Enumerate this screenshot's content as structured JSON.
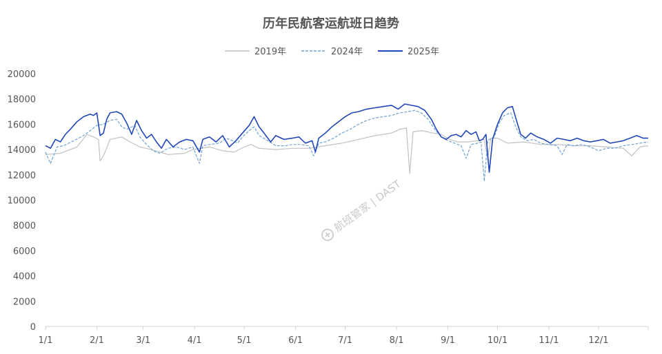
{
  "chart_data": {
    "type": "line",
    "title": "历年民航客运航班日趋势",
    "xlabel": "",
    "ylabel": "",
    "ylim": [
      0,
      20000
    ],
    "yticks": [
      0,
      2000,
      4000,
      6000,
      8000,
      10000,
      12000,
      14000,
      16000,
      18000,
      20000
    ],
    "x_tick_labels": [
      "1/1",
      "2/1",
      "3/1",
      "4/1",
      "5/1",
      "6/1",
      "7/1",
      "8/1",
      "9/1",
      "10/1",
      "11/1",
      "12/1"
    ],
    "x_domain_days": [
      1,
      365
    ],
    "grid": false,
    "legend_position": "top-center",
    "watermark": "航班管家 | DAST",
    "series": [
      {
        "name": "2019年",
        "color": "#c0c0c0",
        "dash": "solid",
        "points": [
          [
            1,
            13600
          ],
          [
            10,
            13700
          ],
          [
            20,
            14200
          ],
          [
            26,
            15200
          ],
          [
            30,
            15000
          ],
          [
            33,
            14800
          ],
          [
            34,
            13100
          ],
          [
            36,
            13500
          ],
          [
            40,
            14800
          ],
          [
            47,
            15000
          ],
          [
            52,
            14600
          ],
          [
            58,
            14200
          ],
          [
            65,
            14000
          ],
          [
            75,
            13600
          ],
          [
            85,
            13700
          ],
          [
            90,
            14000
          ],
          [
            100,
            14200
          ],
          [
            108,
            13900
          ],
          [
            115,
            13800
          ],
          [
            121,
            14200
          ],
          [
            125,
            14400
          ],
          [
            130,
            14100
          ],
          [
            140,
            14000
          ],
          [
            150,
            14100
          ],
          [
            160,
            14100
          ],
          [
            170,
            14300
          ],
          [
            180,
            14500
          ],
          [
            190,
            14800
          ],
          [
            200,
            15100
          ],
          [
            210,
            15300
          ],
          [
            215,
            15600
          ],
          [
            219,
            15700
          ],
          [
            221,
            12100
          ],
          [
            223,
            15400
          ],
          [
            228,
            15500
          ],
          [
            235,
            15300
          ],
          [
            240,
            15200
          ],
          [
            245,
            14800
          ],
          [
            250,
            14600
          ],
          [
            256,
            14600
          ],
          [
            262,
            14700
          ],
          [
            266,
            14800
          ],
          [
            268,
            13300
          ],
          [
            270,
            14900
          ],
          [
            274,
            14900
          ],
          [
            280,
            14500
          ],
          [
            290,
            14600
          ],
          [
            300,
            14400
          ],
          [
            310,
            14400
          ],
          [
            320,
            14300
          ],
          [
            330,
            14300
          ],
          [
            340,
            14200
          ],
          [
            350,
            14100
          ],
          [
            355,
            13500
          ],
          [
            360,
            14200
          ],
          [
            365,
            14300
          ]
        ]
      },
      {
        "name": "2024年",
        "color": "#6fa3d4",
        "dash": "dashed",
        "points": [
          [
            1,
            13800
          ],
          [
            4,
            12900
          ],
          [
            8,
            14200
          ],
          [
            12,
            14300
          ],
          [
            18,
            14700
          ],
          [
            24,
            15100
          ],
          [
            28,
            15500
          ],
          [
            32,
            15900
          ],
          [
            36,
            16000
          ],
          [
            40,
            16300
          ],
          [
            44,
            16400
          ],
          [
            47,
            15800
          ],
          [
            50,
            15600
          ],
          [
            55,
            15900
          ],
          [
            58,
            15000
          ],
          [
            62,
            14400
          ],
          [
            66,
            13900
          ],
          [
            70,
            13700
          ],
          [
            75,
            14100
          ],
          [
            80,
            14200
          ],
          [
            85,
            14000
          ],
          [
            90,
            14200
          ],
          [
            94,
            12900
          ],
          [
            96,
            14300
          ],
          [
            100,
            14400
          ],
          [
            106,
            14500
          ],
          [
            110,
            14900
          ],
          [
            114,
            14700
          ],
          [
            117,
            14500
          ],
          [
            120,
            15000
          ],
          [
            124,
            15500
          ],
          [
            127,
            15800
          ],
          [
            130,
            15100
          ],
          [
            134,
            14800
          ],
          [
            140,
            14300
          ],
          [
            146,
            14300
          ],
          [
            150,
            14400
          ],
          [
            155,
            14400
          ],
          [
            160,
            14300
          ],
          [
            163,
            13500
          ],
          [
            166,
            14500
          ],
          [
            170,
            14600
          ],
          [
            175,
            14900
          ],
          [
            180,
            15300
          ],
          [
            185,
            15600
          ],
          [
            190,
            16000
          ],
          [
            195,
            16300
          ],
          [
            200,
            16500
          ],
          [
            205,
            16600
          ],
          [
            210,
            16700
          ],
          [
            215,
            16900
          ],
          [
            220,
            17000
          ],
          [
            224,
            17100
          ],
          [
            228,
            16900
          ],
          [
            232,
            16400
          ],
          [
            236,
            15600
          ],
          [
            240,
            15000
          ],
          [
            244,
            14700
          ],
          [
            248,
            14500
          ],
          [
            252,
            14300
          ],
          [
            255,
            13300
          ],
          [
            258,
            14400
          ],
          [
            262,
            14500
          ],
          [
            264,
            14600
          ],
          [
            266,
            11500
          ],
          [
            268,
            14700
          ],
          [
            272,
            15000
          ],
          [
            275,
            16100
          ],
          [
            278,
            16700
          ],
          [
            282,
            16900
          ],
          [
            285,
            15800
          ],
          [
            288,
            15000
          ],
          [
            292,
            14700
          ],
          [
            296,
            14800
          ],
          [
            300,
            14500
          ],
          [
            305,
            14400
          ],
          [
            310,
            14300
          ],
          [
            313,
            13600
          ],
          [
            316,
            14400
          ],
          [
            320,
            14300
          ],
          [
            325,
            14400
          ],
          [
            330,
            14200
          ],
          [
            335,
            13900
          ],
          [
            340,
            14100
          ],
          [
            345,
            14100
          ],
          [
            350,
            14300
          ],
          [
            355,
            14400
          ],
          [
            360,
            14500
          ],
          [
            365,
            14600
          ]
        ]
      },
      {
        "name": "2025年",
        "color": "#1f45b8",
        "dash": "solid",
        "points": [
          [
            1,
            14300
          ],
          [
            4,
            14100
          ],
          [
            7,
            14800
          ],
          [
            10,
            14600
          ],
          [
            13,
            15200
          ],
          [
            16,
            15600
          ],
          [
            20,
            16200
          ],
          [
            24,
            16600
          ],
          [
            28,
            16800
          ],
          [
            30,
            16700
          ],
          [
            32,
            16900
          ],
          [
            34,
            15100
          ],
          [
            36,
            15300
          ],
          [
            38,
            16400
          ],
          [
            40,
            16900
          ],
          [
            44,
            17000
          ],
          [
            47,
            16800
          ],
          [
            50,
            16100
          ],
          [
            53,
            15200
          ],
          [
            56,
            16300
          ],
          [
            59,
            15500
          ],
          [
            62,
            14900
          ],
          [
            65,
            15200
          ],
          [
            68,
            14600
          ],
          [
            71,
            14100
          ],
          [
            74,
            14800
          ],
          [
            78,
            14200
          ],
          [
            82,
            14600
          ],
          [
            86,
            14800
          ],
          [
            90,
            14700
          ],
          [
            94,
            13800
          ],
          [
            96,
            14800
          ],
          [
            100,
            15000
          ],
          [
            104,
            14600
          ],
          [
            108,
            15100
          ],
          [
            112,
            14200
          ],
          [
            116,
            14700
          ],
          [
            120,
            15300
          ],
          [
            124,
            15900
          ],
          [
            127,
            16600
          ],
          [
            130,
            15800
          ],
          [
            133,
            15300
          ],
          [
            137,
            14600
          ],
          [
            140,
            15100
          ],
          [
            145,
            14800
          ],
          [
            150,
            14900
          ],
          [
            154,
            15000
          ],
          [
            158,
            14500
          ],
          [
            162,
            14700
          ],
          [
            164,
            13800
          ],
          [
            166,
            14900
          ],
          [
            170,
            15300
          ],
          [
            174,
            15800
          ],
          [
            178,
            16200
          ],
          [
            182,
            16600
          ],
          [
            186,
            16900
          ],
          [
            190,
            17000
          ],
          [
            195,
            17200
          ],
          [
            200,
            17300
          ],
          [
            205,
            17400
          ],
          [
            210,
            17500
          ],
          [
            214,
            17200
          ],
          [
            218,
            17600
          ],
          [
            222,
            17500
          ],
          [
            226,
            17400
          ],
          [
            230,
            17100
          ],
          [
            234,
            16400
          ],
          [
            237,
            15600
          ],
          [
            240,
            15000
          ],
          [
            243,
            14800
          ],
          [
            246,
            15100
          ],
          [
            249,
            15200
          ],
          [
            252,
            15000
          ],
          [
            255,
            15500
          ],
          [
            258,
            15200
          ],
          [
            261,
            15400
          ],
          [
            263,
            14700
          ],
          [
            265,
            14800
          ],
          [
            267,
            15200
          ],
          [
            269,
            12200
          ],
          [
            271,
            14800
          ],
          [
            274,
            16000
          ],
          [
            277,
            16900
          ],
          [
            280,
            17300
          ],
          [
            283,
            17400
          ],
          [
            285,
            16500
          ],
          [
            288,
            15200
          ],
          [
            291,
            14900
          ],
          [
            294,
            15300
          ],
          [
            298,
            15000
          ],
          [
            302,
            14800
          ],
          [
            306,
            14500
          ],
          [
            310,
            14900
          ],
          [
            314,
            14800
          ],
          [
            318,
            14700
          ],
          [
            322,
            14900
          ],
          [
            326,
            14700
          ],
          [
            330,
            14600
          ],
          [
            334,
            14700
          ],
          [
            338,
            14800
          ],
          [
            342,
            14500
          ],
          [
            346,
            14600
          ],
          [
            350,
            14700
          ],
          [
            354,
            14900
          ],
          [
            358,
            15100
          ],
          [
            362,
            14900
          ],
          [
            365,
            14900
          ]
        ]
      }
    ]
  }
}
